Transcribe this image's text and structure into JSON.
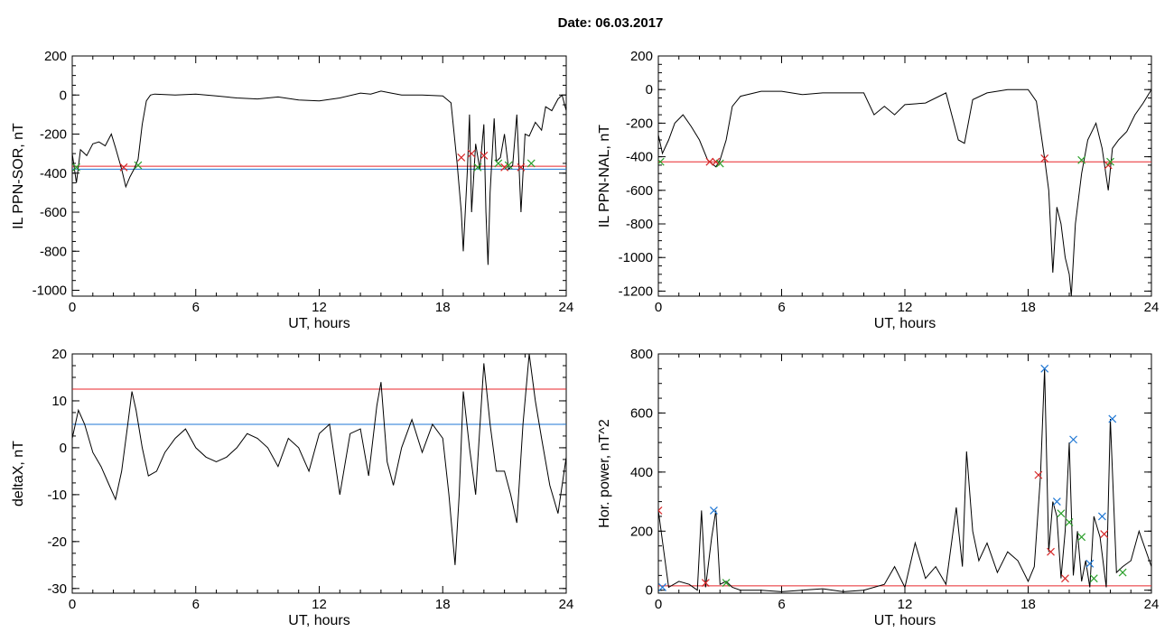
{
  "title": "Date:  06.03.2017",
  "colors": {
    "curve": "#000000",
    "threshold_red": "#e8262a",
    "threshold_blue": "#1f77d4",
    "marker_red": "#d62728",
    "marker_green": "#2ca02c",
    "marker_blue": "#1f77d4",
    "highlight": "#1f5fc8"
  },
  "chart_data": [
    {
      "id": "sor",
      "type": "line",
      "xlabel": "UT, hours",
      "ylabel": "IL PPN-SOR, nT",
      "xlim": [
        0,
        24
      ],
      "ylim": [
        -1030,
        200
      ],
      "xticks": [
        0,
        6,
        12,
        18,
        24
      ],
      "yticks": [
        200,
        0,
        -200,
        -400,
        -600,
        -800,
        -1000
      ],
      "grid": false,
      "x": [
        0,
        0.2,
        0.4,
        0.7,
        1.0,
        1.3,
        1.6,
        1.9,
        2.1,
        2.4,
        2.6,
        2.8,
        3.0,
        3.2,
        3.4,
        3.6,
        3.8,
        4.0,
        5.0,
        6.0,
        7.0,
        8.0,
        9.0,
        10.0,
        11.0,
        12.0,
        13.0,
        14.0,
        14.5,
        15.0,
        15.5,
        16.0,
        17.0,
        18.0,
        18.4,
        18.7,
        18.9,
        19.0,
        19.2,
        19.3,
        19.4,
        19.6,
        19.8,
        20.0,
        20.1,
        20.2,
        20.3,
        20.5,
        20.6,
        20.8,
        21.0,
        21.2,
        21.4,
        21.6,
        21.8,
        22.0,
        22.2,
        22.5,
        22.8,
        23.0,
        23.3,
        23.6,
        23.8,
        24.0
      ],
      "y": [
        -300,
        -450,
        -280,
        -310,
        -250,
        -240,
        -260,
        -200,
        -270,
        -380,
        -470,
        -420,
        -380,
        -330,
        -150,
        -30,
        0,
        5,
        0,
        5,
        -5,
        -15,
        -20,
        -10,
        -25,
        -30,
        -15,
        10,
        5,
        20,
        10,
        0,
        0,
        -5,
        -40,
        -350,
        -600,
        -800,
        -380,
        -100,
        -600,
        -250,
        -380,
        -150,
        -600,
        -870,
        -500,
        -120,
        -340,
        -320,
        -200,
        -380,
        -360,
        -100,
        -600,
        -200,
        -210,
        -140,
        -180,
        -60,
        -80,
        -20,
        0,
        -80
      ],
      "series_lines": [
        {
          "name": "",
          "value": -365,
          "color": "#e8262a"
        },
        {
          "name": "",
          "value": -380,
          "color": "#1f77d4"
        }
      ],
      "markers_red": [
        [
          2.5,
          -370
        ],
        [
          18.9,
          -320
        ],
        [
          19.4,
          -300
        ],
        [
          20.0,
          -310
        ],
        [
          21.0,
          -370
        ],
        [
          21.8,
          -370
        ]
      ],
      "markers_green": [
        [
          0.2,
          -370
        ],
        [
          3.2,
          -360
        ],
        [
          19.7,
          -370
        ],
        [
          20.7,
          -350
        ],
        [
          21.2,
          -360
        ],
        [
          22.3,
          -350
        ]
      ]
    },
    {
      "id": "nal",
      "type": "line",
      "xlabel": "UT, hours",
      "ylabel": "IL PPN-NAL, nT",
      "xlim": [
        0,
        24
      ],
      "ylim": [
        -1230,
        200
      ],
      "xticks": [
        0,
        6,
        12,
        18,
        24
      ],
      "yticks": [
        200,
        0,
        -200,
        -400,
        -600,
        -800,
        -1000,
        -1200
      ],
      "grid": false,
      "x": [
        0,
        0.2,
        0.5,
        0.8,
        1.2,
        1.6,
        2.0,
        2.4,
        2.8,
        3.0,
        3.3,
        3.6,
        4.0,
        5.0,
        6.0,
        7.0,
        8.0,
        9.0,
        10.0,
        10.5,
        11.0,
        11.5,
        12.0,
        13.0,
        14.0,
        14.6,
        14.9,
        15.3,
        16.0,
        17.0,
        18.0,
        18.4,
        18.8,
        19.0,
        19.2,
        19.4,
        19.6,
        19.8,
        20.0,
        20.1,
        20.3,
        20.6,
        20.9,
        21.3,
        21.6,
        21.9,
        22.1,
        22.4,
        22.8,
        23.2,
        23.6,
        24.0
      ],
      "y": [
        -270,
        -380,
        -300,
        -200,
        -150,
        -220,
        -300,
        -420,
        -460,
        -420,
        -300,
        -100,
        -40,
        -10,
        -10,
        -30,
        -20,
        -20,
        -20,
        -150,
        -100,
        -150,
        -90,
        -80,
        -20,
        -300,
        -320,
        -60,
        -20,
        0,
        0,
        -70,
        -410,
        -600,
        -1090,
        -700,
        -800,
        -1000,
        -1100,
        -1230,
        -800,
        -500,
        -300,
        -200,
        -350,
        -600,
        -350,
        -300,
        -250,
        -150,
        -80,
        0
      ],
      "series_lines": [
        {
          "name": "",
          "value": -430,
          "color": "#e8262a"
        }
      ],
      "markers_red": [
        [
          2.5,
          -430
        ],
        [
          2.8,
          -430
        ],
        [
          18.8,
          -410
        ],
        [
          21.9,
          -450
        ]
      ],
      "markers_green": [
        [
          0.1,
          -430
        ],
        [
          3.0,
          -440
        ],
        [
          20.6,
          -420
        ],
        [
          22.0,
          -430
        ]
      ]
    },
    {
      "id": "deltax",
      "type": "line",
      "xlabel": "UT, hours",
      "ylabel": "deltaX, nT",
      "xlim": [
        0,
        24
      ],
      "ylim": [
        -31,
        20
      ],
      "xticks": [
        0,
        6,
        12,
        18,
        24
      ],
      "yticks": [
        20,
        10,
        0,
        -10,
        -20,
        -30
      ],
      "grid": false,
      "x": [
        0,
        0.3,
        0.6,
        1.0,
        1.4,
        1.8,
        2.1,
        2.4,
        2.7,
        2.9,
        3.1,
        3.4,
        3.7,
        4.1,
        4.5,
        5.0,
        5.5,
        6.0,
        6.5,
        7.0,
        7.5,
        8.0,
        8.5,
        9.0,
        9.5,
        10.0,
        10.5,
        11.0,
        11.5,
        12.0,
        12.5,
        13.0,
        13.5,
        14.0,
        14.4,
        14.8,
        15.0,
        15.3,
        15.6,
        16.0,
        16.5,
        17.0,
        17.5,
        18.0,
        18.3,
        18.6,
        18.8,
        19.0,
        19.3,
        19.6,
        20.0,
        20.3,
        20.6,
        21.0,
        21.3,
        21.6,
        21.9,
        22.2,
        22.5,
        22.8,
        23.2,
        23.6,
        24.0
      ],
      "y": [
        2,
        8,
        5,
        -1,
        -4,
        -8,
        -11,
        -5,
        5,
        12,
        8,
        0,
        -6,
        -5,
        -1,
        2,
        4,
        0,
        -2,
        -3,
        -2,
        0,
        3,
        2,
        0,
        -4,
        2,
        0,
        -5,
        3,
        5,
        -10,
        3,
        4,
        -6,
        9,
        14,
        -3,
        -8,
        0,
        6,
        -1,
        5,
        2,
        -10,
        -25,
        -10,
        12,
        0,
        -10,
        18,
        5,
        -5,
        -5,
        -10,
        -16,
        5,
        20,
        10,
        2,
        -8,
        -14,
        -2
      ],
      "series_lines": [
        {
          "name": "",
          "value": 12.5,
          "color": "#e8262a"
        },
        {
          "name": "",
          "value": 5,
          "color": "#1f77d4"
        }
      ]
    },
    {
      "id": "power",
      "type": "line",
      "xlabel": "UT, hours",
      "ylabel": "Hor. power, nT^2",
      "xlim": [
        0,
        24
      ],
      "ylim": [
        -10,
        800
      ],
      "xticks": [
        0,
        6,
        12,
        18,
        24
      ],
      "yticks": [
        0,
        200,
        400,
        600,
        800
      ],
      "grid": false,
      "x": [
        0,
        0.5,
        1.0,
        1.5,
        1.9,
        2.1,
        2.3,
        2.6,
        2.8,
        3.0,
        3.3,
        3.6,
        4.0,
        5.0,
        6.0,
        7.0,
        8.0,
        9.0,
        10.0,
        11.0,
        11.5,
        12.0,
        12.5,
        13.0,
        13.5,
        14.0,
        14.5,
        14.8,
        15.0,
        15.3,
        15.6,
        16.0,
        16.5,
        17.0,
        17.5,
        18.0,
        18.3,
        18.6,
        18.8,
        19.0,
        19.2,
        19.4,
        19.6,
        19.8,
        20.0,
        20.2,
        20.4,
        20.6,
        20.8,
        21.0,
        21.2,
        21.5,
        21.8,
        22.0,
        22.3,
        22.6,
        23.0,
        23.4,
        24.0
      ],
      "y": [
        270,
        10,
        30,
        20,
        0,
        270,
        10,
        180,
        270,
        20,
        30,
        10,
        0,
        0,
        -5,
        0,
        5,
        -5,
        0,
        20,
        80,
        10,
        160,
        40,
        80,
        20,
        280,
        80,
        470,
        200,
        100,
        160,
        60,
        130,
        100,
        30,
        80,
        390,
        750,
        130,
        300,
        250,
        40,
        200,
        500,
        50,
        200,
        30,
        100,
        10,
        250,
        180,
        10,
        580,
        60,
        80,
        100,
        200,
        80
      ],
      "series_lines": [
        {
          "name": "",
          "value": 15,
          "color": "#e8262a"
        }
      ],
      "markers_red": [
        [
          0,
          270
        ],
        [
          2.3,
          25
        ],
        [
          18.5,
          390
        ],
        [
          19.1,
          130
        ],
        [
          19.8,
          40
        ],
        [
          21.7,
          190
        ]
      ],
      "markers_green": [
        [
          3.3,
          25
        ],
        [
          19.6,
          260
        ],
        [
          20.0,
          230
        ],
        [
          20.6,
          180
        ],
        [
          21.2,
          40
        ],
        [
          22.6,
          60
        ]
      ],
      "markers_blue": [
        [
          0.2,
          10
        ],
        [
          2.7,
          270
        ],
        [
          18.8,
          750
        ],
        [
          19.4,
          300
        ],
        [
          20.2,
          510
        ],
        [
          21.0,
          90
        ],
        [
          21.6,
          250
        ],
        [
          22.1,
          580
        ]
      ]
    }
  ]
}
